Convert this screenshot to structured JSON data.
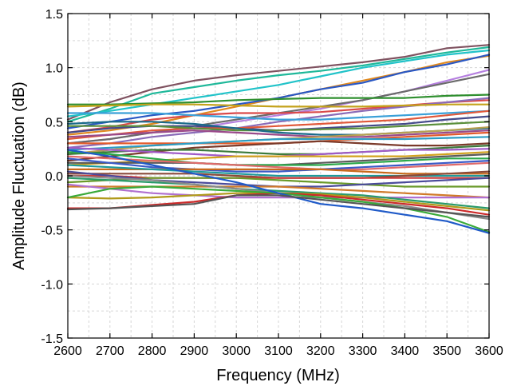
{
  "chart_data": {
    "type": "line",
    "title": "",
    "xlabel": "Frequency (MHz)",
    "ylabel": "Amplitude Fluctuation (dB)",
    "xlim": [
      2600,
      3600
    ],
    "ylim": [
      -1.5,
      1.5
    ],
    "x_ticks": [
      2600,
      2700,
      2800,
      2900,
      3000,
      3100,
      3200,
      3300,
      3400,
      3500,
      3600
    ],
    "x_tick_labels": [
      "2600",
      "2700",
      "2800",
      "2900",
      "3000",
      "3100",
      "3200",
      "3300",
      "3400",
      "3500",
      "3600"
    ],
    "y_ticks": [
      -1.5,
      -1.0,
      -0.5,
      0.0,
      0.5,
      1.0,
      1.5
    ],
    "y_tick_labels": [
      "-1.5",
      "-1.0",
      "-0.5",
      "0.0",
      "0.5",
      "1.0",
      "1.5"
    ],
    "grid": true,
    "legend": "none",
    "x": [
      2600,
      2700,
      2800,
      2900,
      3000,
      3100,
      3200,
      3300,
      3400,
      3500,
      3600
    ],
    "series": [
      {
        "color": "#7f5260",
        "values": [
          0.52,
          0.68,
          0.8,
          0.88,
          0.93,
          0.97,
          1.01,
          1.05,
          1.1,
          1.18,
          1.21
        ]
      },
      {
        "color": "#1fb89a",
        "values": [
          0.5,
          0.62,
          0.76,
          0.82,
          0.88,
          0.93,
          0.97,
          1.02,
          1.08,
          1.14,
          1.19
        ]
      },
      {
        "color": "#22c3c9",
        "values": [
          0.55,
          0.6,
          0.66,
          0.72,
          0.78,
          0.84,
          0.92,
          1.0,
          1.06,
          1.12,
          1.16
        ]
      },
      {
        "color": "#e0891f",
        "values": [
          0.38,
          0.42,
          0.48,
          0.56,
          0.64,
          0.72,
          0.8,
          0.88,
          0.96,
          1.05,
          1.11
        ]
      },
      {
        "color": "#2a58c4",
        "values": [
          0.44,
          0.5,
          0.56,
          0.6,
          0.66,
          0.72,
          0.8,
          0.86,
          0.96,
          1.03,
          1.12
        ]
      },
      {
        "color": "#b680e0",
        "values": [
          0.3,
          0.34,
          0.4,
          0.44,
          0.5,
          0.56,
          0.62,
          0.7,
          0.78,
          0.88,
          0.98
        ]
      },
      {
        "color": "#6b6b6b",
        "values": [
          0.3,
          0.34,
          0.4,
          0.46,
          0.52,
          0.58,
          0.64,
          0.7,
          0.78,
          0.86,
          0.94
        ]
      },
      {
        "color": "#2f8f2f",
        "values": [
          0.66,
          0.66,
          0.67,
          0.68,
          0.7,
          0.71,
          0.72,
          0.72,
          0.72,
          0.74,
          0.75
        ]
      },
      {
        "color": "#d94a4a",
        "values": [
          0.4,
          0.45,
          0.52,
          0.56,
          0.58,
          0.58,
          0.59,
          0.62,
          0.65,
          0.68,
          0.7
        ]
      },
      {
        "color": "#8a6bb8",
        "values": [
          0.26,
          0.3,
          0.36,
          0.4,
          0.44,
          0.5,
          0.55,
          0.6,
          0.64,
          0.68,
          0.72
        ]
      },
      {
        "color": "#c4a21a",
        "values": [
          0.64,
          0.65,
          0.66,
          0.66,
          0.65,
          0.64,
          0.64,
          0.64,
          0.65,
          0.66,
          0.66
        ]
      },
      {
        "color": "#3aa0d8",
        "values": [
          0.58,
          0.58,
          0.58,
          0.56,
          0.54,
          0.52,
          0.52,
          0.54,
          0.56,
          0.58,
          0.6
        ]
      },
      {
        "color": "#444a8a",
        "values": [
          0.4,
          0.44,
          0.46,
          0.46,
          0.44,
          0.42,
          0.44,
          0.46,
          0.48,
          0.52,
          0.55
        ]
      },
      {
        "color": "#e0583a",
        "values": [
          0.34,
          0.38,
          0.42,
          0.44,
          0.44,
          0.46,
          0.48,
          0.5,
          0.52,
          0.56,
          0.6
        ]
      },
      {
        "color": "#5a8f3a",
        "values": [
          0.46,
          0.46,
          0.46,
          0.44,
          0.42,
          0.42,
          0.43,
          0.44,
          0.46,
          0.48,
          0.5
        ]
      },
      {
        "color": "#9a4a8a",
        "values": [
          0.36,
          0.38,
          0.4,
          0.42,
          0.4,
          0.38,
          0.36,
          0.36,
          0.38,
          0.4,
          0.42
        ]
      },
      {
        "color": "#1a6a8a",
        "values": [
          0.48,
          0.5,
          0.5,
          0.48,
          0.44,
          0.4,
          0.38,
          0.38,
          0.4,
          0.42,
          0.44
        ]
      },
      {
        "color": "#b8a050",
        "values": [
          0.2,
          0.24,
          0.28,
          0.3,
          0.32,
          0.34,
          0.36,
          0.38,
          0.4,
          0.42,
          0.45
        ]
      },
      {
        "color": "#e35b2b",
        "values": [
          0.3,
          0.3,
          0.3,
          0.3,
          0.3,
          0.3,
          0.32,
          0.34,
          0.36,
          0.38,
          0.4
        ]
      },
      {
        "color": "#2c9cc4",
        "values": [
          0.24,
          0.26,
          0.28,
          0.3,
          0.32,
          0.34,
          0.34,
          0.34,
          0.34,
          0.35,
          0.36
        ]
      },
      {
        "color": "#7a3a2a",
        "values": [
          0.14,
          0.18,
          0.22,
          0.26,
          0.28,
          0.3,
          0.32,
          0.3,
          0.28,
          0.28,
          0.3
        ]
      },
      {
        "color": "#3c7a3c",
        "values": [
          0.2,
          0.22,
          0.24,
          0.24,
          0.22,
          0.2,
          0.2,
          0.22,
          0.24,
          0.26,
          0.28
        ]
      },
      {
        "color": "#a05ac8",
        "values": [
          0.26,
          0.24,
          0.22,
          0.2,
          0.18,
          0.18,
          0.2,
          0.22,
          0.24,
          0.24,
          0.25
        ]
      },
      {
        "color": "#d2a21e",
        "values": [
          0.1,
          0.12,
          0.14,
          0.16,
          0.18,
          0.18,
          0.18,
          0.18,
          0.18,
          0.2,
          0.22
        ]
      },
      {
        "color": "#5a5a5a",
        "values": [
          0.12,
          0.12,
          0.12,
          0.12,
          0.1,
          0.1,
          0.12,
          0.14,
          0.16,
          0.18,
          0.2
        ]
      },
      {
        "color": "#2ba84a",
        "values": [
          0.22,
          0.2,
          0.16,
          0.12,
          0.1,
          0.1,
          0.1,
          0.12,
          0.14,
          0.16,
          0.16
        ]
      },
      {
        "color": "#e06a6a",
        "values": [
          0.18,
          0.16,
          0.14,
          0.12,
          0.1,
          0.08,
          0.06,
          0.06,
          0.08,
          0.1,
          0.12
        ]
      },
      {
        "color": "#3a5ac8",
        "values": [
          0.16,
          0.12,
          0.08,
          0.06,
          0.04,
          0.04,
          0.06,
          0.08,
          0.1,
          0.12,
          0.14
        ]
      },
      {
        "color": "#c86a1a",
        "values": [
          0.06,
          0.06,
          0.06,
          0.06,
          0.06,
          0.06,
          0.06,
          0.04,
          0.02,
          0.02,
          0.02
        ]
      },
      {
        "color": "#1e9a9a",
        "values": [
          0.1,
          0.08,
          0.06,
          0.04,
          0.02,
          0.0,
          0.0,
          0.0,
          0.0,
          0.0,
          0.0
        ]
      },
      {
        "color": "#8a4a3a",
        "values": [
          0.02,
          0.02,
          0.02,
          0.02,
          0.0,
          -0.02,
          -0.02,
          -0.02,
          0.0,
          0.02,
          0.04
        ]
      },
      {
        "color": "#cc3a3a",
        "values": [
          0.0,
          0.0,
          -0.02,
          -0.02,
          -0.02,
          -0.02,
          -0.02,
          -0.02,
          -0.02,
          -0.02,
          -0.02
        ]
      },
      {
        "color": "#6a9a2a",
        "values": [
          -0.06,
          -0.04,
          -0.02,
          -0.02,
          -0.02,
          -0.04,
          -0.06,
          -0.08,
          -0.1,
          -0.1,
          -0.1
        ]
      },
      {
        "color": "#4a4a9a",
        "values": [
          0.04,
          0.0,
          -0.04,
          -0.06,
          -0.08,
          -0.1,
          -0.1,
          -0.08,
          -0.06,
          -0.04,
          -0.02
        ]
      },
      {
        "color": "#d07a2a",
        "values": [
          -0.1,
          -0.1,
          -0.1,
          -0.1,
          -0.1,
          -0.1,
          -0.12,
          -0.14,
          -0.16,
          -0.18,
          -0.2
        ]
      },
      {
        "color": "#b070d0",
        "values": [
          -0.08,
          -0.12,
          -0.16,
          -0.18,
          -0.2,
          -0.2,
          -0.2,
          -0.2,
          -0.2,
          -0.2,
          -0.2
        ]
      },
      {
        "color": "#2a9a6a",
        "values": [
          -0.02,
          -0.04,
          -0.06,
          -0.08,
          -0.12,
          -0.14,
          -0.16,
          -0.18,
          -0.22,
          -0.26,
          -0.3
        ]
      },
      {
        "color": "#b09a1a",
        "values": [
          -0.2,
          -0.21,
          -0.2,
          -0.18,
          -0.16,
          -0.16,
          -0.17,
          -0.2,
          -0.24,
          -0.28,
          -0.32
        ]
      },
      {
        "color": "#8a8a8a",
        "values": [
          0.0,
          -0.02,
          -0.04,
          -0.08,
          -0.12,
          -0.16,
          -0.2,
          -0.24,
          -0.28,
          -0.34,
          -0.4
        ]
      },
      {
        "color": "#cc2a2a",
        "values": [
          -0.3,
          -0.3,
          -0.27,
          -0.24,
          -0.18,
          -0.16,
          -0.18,
          -0.22,
          -0.26,
          -0.3,
          -0.36
        ]
      },
      {
        "color": "#3aaa3a",
        "values": [
          -0.2,
          -0.12,
          -0.1,
          -0.12,
          -0.14,
          -0.16,
          -0.2,
          -0.24,
          -0.3,
          -0.38,
          -0.52
        ]
      },
      {
        "color": "#1f5ac8",
        "values": [
          0.24,
          0.18,
          0.1,
          0.02,
          -0.06,
          -0.16,
          -0.26,
          -0.3,
          -0.36,
          -0.42,
          -0.53
        ]
      },
      {
        "color": "#555555",
        "values": [
          -0.31,
          -0.3,
          -0.28,
          -0.26,
          -0.18,
          -0.18,
          -0.22,
          -0.26,
          -0.3,
          -0.34,
          -0.38
        ]
      }
    ]
  }
}
